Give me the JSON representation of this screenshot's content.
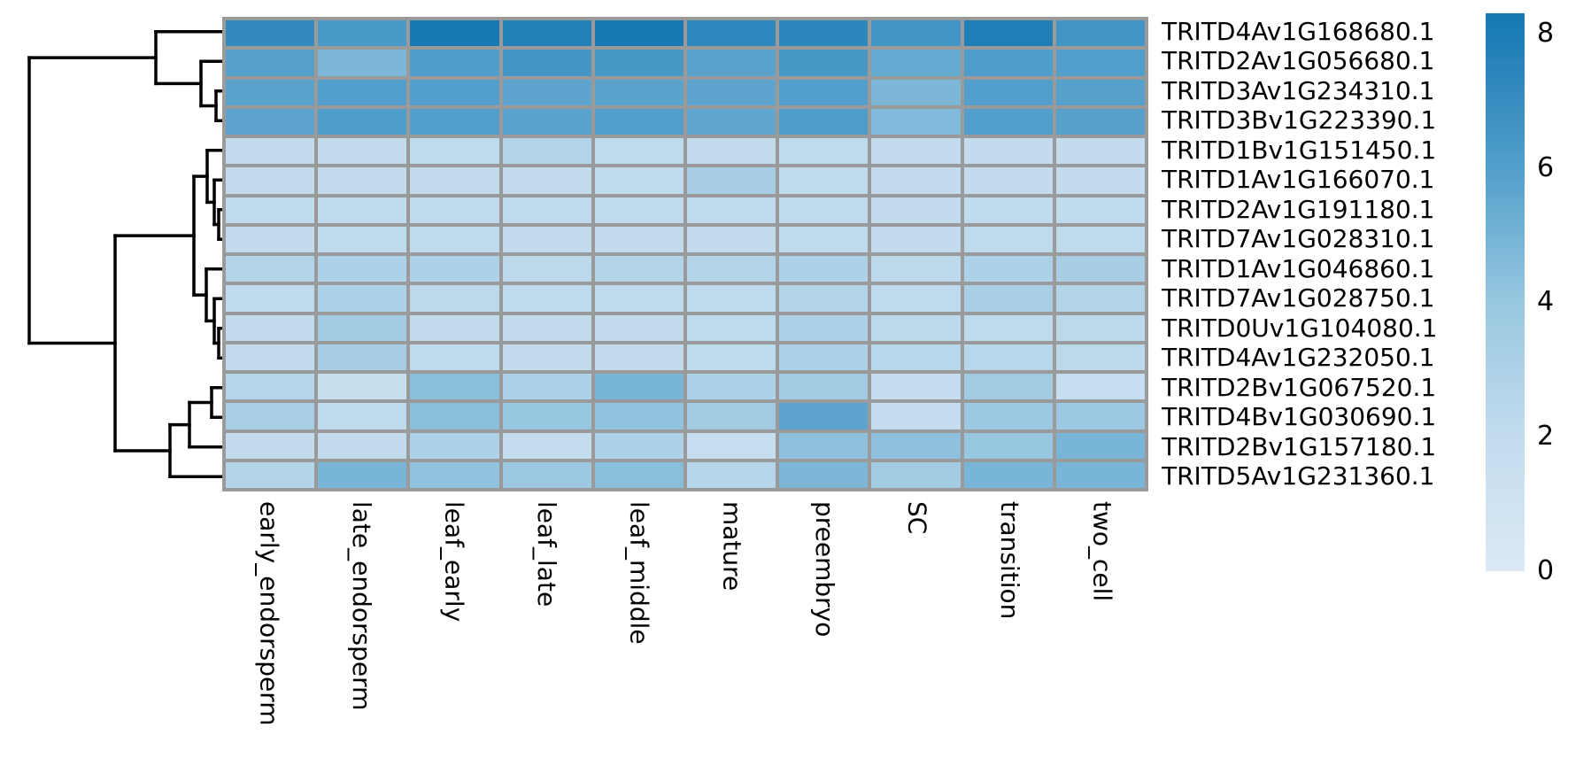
{
  "chart_data": {
    "type": "heatmap",
    "title": "",
    "description": "Clustered gene expression heatmap with row dendrogram and vertical colorbar",
    "columns": [
      "early_endorsperm",
      "late_endorsperm",
      "leaf_early",
      "leaf_late",
      "leaf_middle",
      "mature",
      "preembryo",
      "SC",
      "transition",
      "two_cell"
    ],
    "rows": [
      {
        "label": "TRITD4Av1G168680.1",
        "values": [
          7.2,
          6.3,
          8.2,
          7.7,
          8.2,
          7.3,
          7.4,
          6.6,
          7.9,
          6.6
        ]
      },
      {
        "label": "TRITD2Av1G056680.1",
        "values": [
          5.9,
          4.8,
          6.1,
          6.5,
          6.4,
          5.8,
          6.4,
          5.5,
          6.2,
          6.0
        ]
      },
      {
        "label": "TRITD3Av1G234310.1",
        "values": [
          5.8,
          6.0,
          6.0,
          5.7,
          5.8,
          5.7,
          6.0,
          4.8,
          6.0,
          5.9
        ]
      },
      {
        "label": "TRITD3Bv1G223390.1",
        "values": [
          5.7,
          6.1,
          6.0,
          5.8,
          6.0,
          5.6,
          6.2,
          4.7,
          6.0,
          5.9
        ]
      },
      {
        "label": "TRITD1Bv1G151450.1",
        "values": [
          2.0,
          2.0,
          2.2,
          2.8,
          2.2,
          2.0,
          2.2,
          2.0,
          2.0,
          2.0
        ]
      },
      {
        "label": "TRITD1Av1G166070.1",
        "values": [
          2.0,
          2.0,
          2.0,
          2.0,
          2.1,
          3.3,
          2.1,
          2.0,
          2.0,
          2.0
        ]
      },
      {
        "label": "TRITD2Av1G191180.1",
        "values": [
          2.1,
          2.1,
          2.1,
          2.1,
          2.1,
          2.1,
          2.1,
          2.0,
          2.1,
          2.1
        ]
      },
      {
        "label": "TRITD7Av1G028310.1",
        "values": [
          2.0,
          2.2,
          2.2,
          2.0,
          2.0,
          2.0,
          2.2,
          2.0,
          2.2,
          2.2
        ]
      },
      {
        "label": "TRITD1Av1G046860.1",
        "values": [
          2.8,
          3.0,
          3.0,
          2.3,
          2.7,
          2.8,
          3.0,
          2.3,
          3.0,
          3.3
        ]
      },
      {
        "label": "TRITD7Av1G028750.1",
        "values": [
          2.1,
          3.0,
          2.3,
          2.2,
          2.2,
          2.2,
          2.8,
          2.2,
          3.2,
          2.8
        ]
      },
      {
        "label": "TRITD0Uv1G104080.1",
        "values": [
          2.0,
          3.5,
          2.0,
          2.0,
          2.0,
          2.2,
          3.0,
          2.3,
          2.2,
          2.3
        ]
      },
      {
        "label": "TRITD4Av1G232050.1",
        "values": [
          2.0,
          3.3,
          2.2,
          2.0,
          2.0,
          2.2,
          3.0,
          2.5,
          2.5,
          2.3
        ]
      },
      {
        "label": "TRITD2Bv1G067520.1",
        "values": [
          2.6,
          1.6,
          4.4,
          3.0,
          4.9,
          3.0,
          3.6,
          1.8,
          3.6,
          1.7
        ]
      },
      {
        "label": "TRITD4Bv1G030690.1",
        "values": [
          3.2,
          2.2,
          4.4,
          4.0,
          4.2,
          3.6,
          5.7,
          1.8,
          3.8,
          3.8
        ]
      },
      {
        "label": "TRITD2Bv1G157180.1",
        "values": [
          2.0,
          2.0,
          3.0,
          1.9,
          3.0,
          1.7,
          4.3,
          4.3,
          4.0,
          4.9
        ]
      },
      {
        "label": "TRITD5Av1G231360.1",
        "values": [
          2.7,
          4.9,
          4.2,
          3.8,
          4.4,
          2.6,
          4.8,
          3.5,
          4.9,
          4.9
        ]
      }
    ],
    "colorbar": {
      "ticks": [
        "8",
        "6",
        "4",
        "2",
        "0"
      ],
      "tick_values": [
        8,
        6,
        4,
        2,
        0
      ],
      "vmin": 0,
      "vmax": 8.3,
      "color_stops": [
        {
          "v": 0,
          "color": "#dbe9f5"
        },
        {
          "v": 2,
          "color": "#c2dcee"
        },
        {
          "v": 4,
          "color": "#98c7e0"
        },
        {
          "v": 6,
          "color": "#529fcb"
        },
        {
          "v": 8,
          "color": "#1c7cb5"
        },
        {
          "v": 8.3,
          "color": "#1878b2"
        }
      ]
    },
    "dendrogram": {
      "orientation": "left",
      "merges": [
        [
          "L2",
          "L3",
          6
        ],
        [
          "L1",
          "M0",
          23
        ],
        [
          "L0",
          "M1",
          74
        ],
        [
          "L6",
          "L7",
          3
        ],
        [
          "L5",
          "M3",
          8
        ],
        [
          "L4",
          "M4",
          16
        ],
        [
          "L10",
          "L11",
          3
        ],
        [
          "L9",
          "M6",
          8
        ],
        [
          "L8",
          "M7",
          17
        ],
        [
          "M5",
          "M8",
          31
        ],
        [
          "L12",
          "L13",
          11
        ],
        [
          "M10",
          "L14",
          36
        ],
        [
          "M11",
          "L15",
          58
        ],
        [
          "M9",
          "M12",
          120
        ],
        [
          "M2",
          "M13",
          217
        ]
      ]
    },
    "layout_hints": {
      "grid": "off",
      "legend_position": "right-colorbar",
      "x_tick_rotation": 90
    }
  },
  "colors": {
    "background": "#ffffff",
    "grid_line": "#9a9a9a",
    "dendrogram_line": "#000000",
    "label_text": "#000000"
  }
}
